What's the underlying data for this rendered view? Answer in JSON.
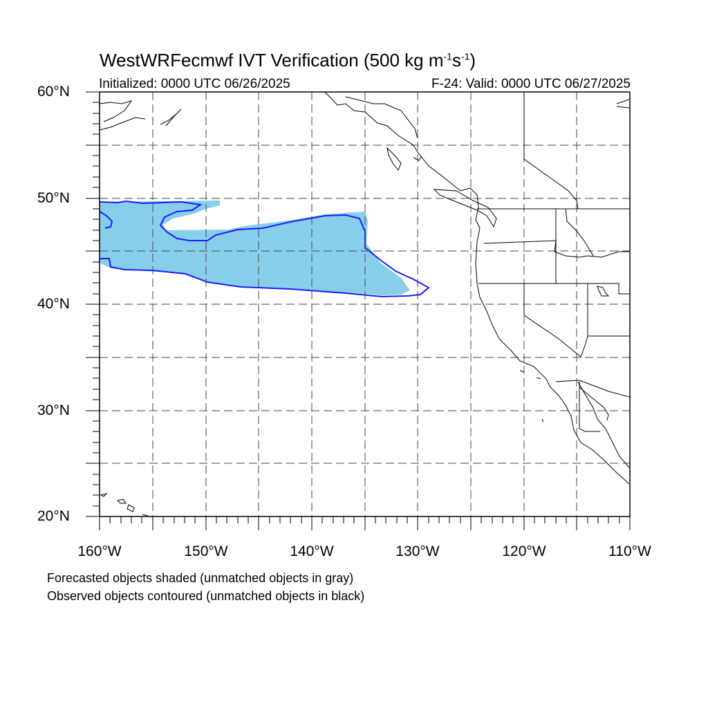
{
  "title": {
    "main": "WestWRFecmwf IVT Verification (500 kg m",
    "exp1": "-1",
    "s": "s",
    "exp2": "-1",
    "close": ")"
  },
  "init_label": "Initialized: 0000 UTC 06/26/2025",
  "valid_label": "F-24: Valid: 0000 UTC 06/27/2025",
  "lat_labels": [
    {
      "id": "lat-60",
      "text": "60°N"
    },
    {
      "id": "lat-50",
      "text": "50°N"
    },
    {
      "id": "lat-40",
      "text": "40°N"
    },
    {
      "id": "lat-30",
      "text": "30°N"
    },
    {
      "id": "lat-20",
      "text": "20°N"
    }
  ],
  "lon_labels": [
    {
      "id": "lon-160",
      "text": "160°W"
    },
    {
      "id": "lon-150",
      "text": "150°W"
    },
    {
      "id": "lon-140",
      "text": "140°W"
    },
    {
      "id": "lon-130",
      "text": "130°W"
    },
    {
      "id": "lon-120",
      "text": "120°W"
    },
    {
      "id": "lon-110",
      "text": "110°W"
    }
  ],
  "legend_notes": [
    "Forecasted objects shaded (unmatched objects in gray)",
    "Observed objects contoured (unmatched objects in black)"
  ],
  "map_extent": {
    "lon_min": -160,
    "lon_max": -110,
    "lat_min": 20,
    "lat_max": 60
  },
  "colors": {
    "forecast_fill": "#87ceeb",
    "observed_contour": "#1a1aff",
    "grid": "#444444",
    "coastline": "#000000"
  }
}
